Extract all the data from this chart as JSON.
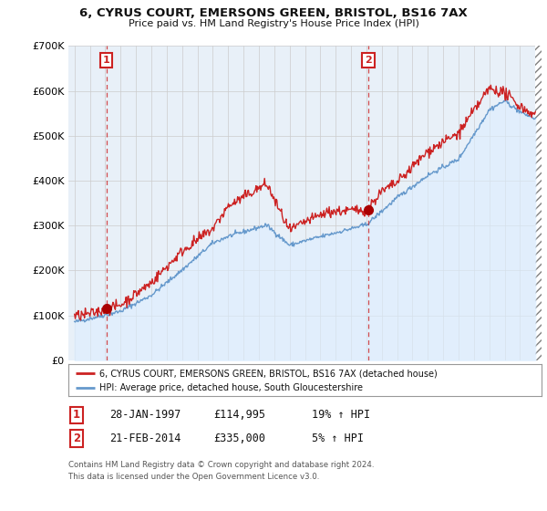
{
  "title_line1": "6, CYRUS COURT, EMERSONS GREEN, BRISTOL, BS16 7AX",
  "title_line2": "Price paid vs. HM Land Registry's House Price Index (HPI)",
  "ylim": [
    0,
    700000
  ],
  "xlim_start": 1994.6,
  "xlim_end": 2025.4,
  "yticks": [
    0,
    100000,
    200000,
    300000,
    400000,
    500000,
    600000,
    700000
  ],
  "ytick_labels": [
    "£0",
    "£100K",
    "£200K",
    "£300K",
    "£400K",
    "£500K",
    "£600K",
    "£700K"
  ],
  "sale1_x": 1997.08,
  "sale1_y": 114995,
  "sale1_label": "1",
  "sale2_x": 2014.13,
  "sale2_y": 335000,
  "sale2_label": "2",
  "red_line_color": "#cc2222",
  "blue_line_color": "#6699cc",
  "blue_fill_color": "#ddeeff",
  "marker_color": "#aa0000",
  "vline_color": "#cc2222",
  "grid_color": "#cccccc",
  "background_color": "#ffffff",
  "chart_bg_color": "#e8f0f8",
  "legend_line1": "6, CYRUS COURT, EMERSONS GREEN, BRISTOL, BS16 7AX (detached house)",
  "legend_line2": "HPI: Average price, detached house, South Gloucestershire",
  "footnote_line1": "Contains HM Land Registry data © Crown copyright and database right 2024.",
  "footnote_line2": "This data is licensed under the Open Government Licence v3.0.",
  "table_row1": [
    "1",
    "28-JAN-1997",
    "£114,995",
    "19% ↑ HPI"
  ],
  "table_row2": [
    "2",
    "21-FEB-2014",
    "£335,000",
    "5% ↑ HPI"
  ]
}
